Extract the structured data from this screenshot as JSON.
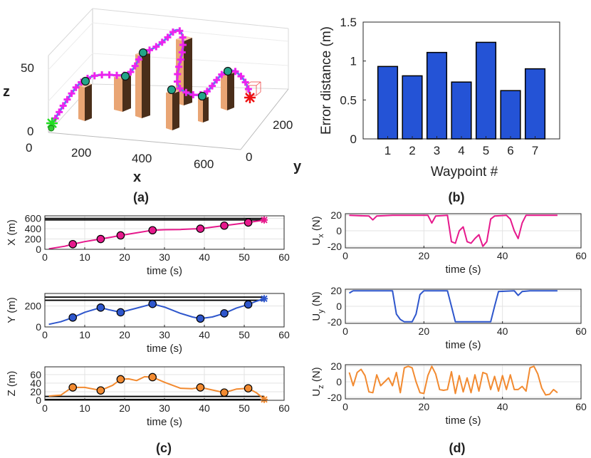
{
  "colors": {
    "bar_blue": "#2453d6",
    "x_series": "#e6198c",
    "y_series": "#2e56cc",
    "z_series": "#f28a30",
    "path3d": "#6e6ef0",
    "marker3d": "#ee22ee",
    "building_light": "#f4c9a6",
    "building_dark": "#3a2416",
    "start": "#22dd22",
    "goal": "#ee1111"
  },
  "chart_data": [
    {
      "id": "a",
      "type": "3d-line",
      "panel_label": "(a)",
      "xlabel": "x",
      "ylabel": "y",
      "zlabel": "z",
      "x_ticks": [
        "0",
        "200",
        "400",
        "600"
      ],
      "y_ticks": [
        "0",
        "200"
      ],
      "z_ticks": [
        "0",
        "50"
      ],
      "description_series": "trajectory with waypoints over building obstacles, from start (green) to goal (red)"
    },
    {
      "id": "b",
      "type": "bar",
      "panel_label": "(b)",
      "xlabel": "Waypoint #",
      "ylabel": "Error distance (m)",
      "categories": [
        "1",
        "2",
        "3",
        "4",
        "5",
        "6",
        "7"
      ],
      "values": [
        0.93,
        0.81,
        1.11,
        0.73,
        1.24,
        0.62,
        0.9
      ],
      "ylim": [
        0,
        1.5
      ],
      "y_ticks": [
        "0",
        "0.5",
        "1",
        "1.5"
      ]
    },
    {
      "id": "c",
      "type": "line",
      "panel_label": "(c)",
      "xlim": [
        0,
        60
      ],
      "x_ticks": [
        "0",
        "10",
        "20",
        "30",
        "40",
        "50",
        "60"
      ],
      "subplots": [
        {
          "name": "X",
          "ylabel": "X (m)",
          "xlabel": "time (s)",
          "ylim": [
            0,
            650
          ],
          "y_ticks": [
            "0",
            "200",
            "400",
            "600"
          ],
          "ref_lines": [
            570,
            600
          ],
          "series": [
            [
              1,
              10
            ],
            [
              5,
              60
            ],
            [
              7,
              100
            ],
            [
              10,
              150
            ],
            [
              14,
              200
            ],
            [
              17,
              240
            ],
            [
              19,
              270
            ],
            [
              23,
              320
            ],
            [
              27,
              370
            ],
            [
              30,
              380
            ],
            [
              34,
              385
            ],
            [
              37,
              395
            ],
            [
              39,
              400
            ],
            [
              42,
              430
            ],
            [
              45,
              460
            ],
            [
              48,
              490
            ],
            [
              51,
              520
            ],
            [
              53,
              545
            ],
            [
              55,
              565
            ]
          ],
          "waypoints": [
            [
              7,
              100
            ],
            [
              14,
              200
            ],
            [
              19,
              270
            ],
            [
              27,
              370
            ],
            [
              39,
              400
            ],
            [
              45,
              460
            ],
            [
              51,
              520
            ]
          ],
          "goal": [
            55,
            570
          ]
        },
        {
          "name": "Y",
          "ylabel": "Y (m)",
          "xlabel": "time (s)",
          "ylim": [
            0,
            320
          ],
          "y_ticks": [
            "0",
            "200"
          ],
          "ref_lines": [
            255,
            285
          ],
          "series": [
            [
              1,
              25
            ],
            [
              4,
              50
            ],
            [
              7,
              90
            ],
            [
              10,
              140
            ],
            [
              14,
              185
            ],
            [
              16,
              165
            ],
            [
              19,
              140
            ],
            [
              23,
              180
            ],
            [
              27,
              220
            ],
            [
              30,
              190
            ],
            [
              34,
              130
            ],
            [
              37,
              95
            ],
            [
              39,
              80
            ],
            [
              42,
              95
            ],
            [
              45,
              130
            ],
            [
              48,
              180
            ],
            [
              51,
              215
            ],
            [
              53,
              245
            ],
            [
              55,
              270
            ]
          ],
          "waypoints": [
            [
              7,
              90
            ],
            [
              14,
              185
            ],
            [
              19,
              140
            ],
            [
              27,
              220
            ],
            [
              39,
              80
            ],
            [
              45,
              130
            ],
            [
              51,
              215
            ]
          ],
          "goal": [
            55,
            270
          ]
        },
        {
          "name": "Z",
          "ylabel": "Z (m)",
          "xlabel": "time (s)",
          "ylim": [
            0,
            78
          ],
          "y_ticks": [
            "0",
            "20",
            "40",
            "60"
          ],
          "ref_lines": [
            2,
            9
          ],
          "series": [
            [
              1,
              10
            ],
            [
              4,
              12
            ],
            [
              6,
              25
            ],
            [
              7,
              30
            ],
            [
              10,
              30
            ],
            [
              14,
              23
            ],
            [
              17,
              35
            ],
            [
              19,
              49
            ],
            [
              21,
              50
            ],
            [
              23,
              46
            ],
            [
              25,
              55
            ],
            [
              27,
              54
            ],
            [
              30,
              42
            ],
            [
              34,
              28
            ],
            [
              37,
              27
            ],
            [
              39,
              30
            ],
            [
              42,
              24
            ],
            [
              45,
              18
            ],
            [
              48,
              26
            ],
            [
              51,
              28
            ],
            [
              53,
              18
            ],
            [
              55,
              3
            ]
          ],
          "waypoints": [
            [
              7,
              30
            ],
            [
              14,
              23
            ],
            [
              19,
              49
            ],
            [
              27,
              54
            ],
            [
              39,
              30
            ],
            [
              45,
              18
            ],
            [
              51,
              28
            ]
          ],
          "goal": [
            55,
            2
          ]
        }
      ]
    },
    {
      "id": "d",
      "type": "line",
      "panel_label": "(d)",
      "xlim": [
        0,
        60
      ],
      "x_ticks": [
        "0",
        "20",
        "40",
        "60"
      ],
      "subplots": [
        {
          "name": "Ux",
          "ylabel": "U_x (N)",
          "ylabel_main": "U",
          "ylabel_sub": "x",
          "ylabel_unit": " (N)",
          "xlabel": "time (s)",
          "ylim": [
            -22,
            22
          ],
          "y_ticks": [
            "-20",
            "0",
            "20"
          ],
          "series": [
            [
              1,
              20
            ],
            [
              6,
              19
            ],
            [
              7,
              14
            ],
            [
              8,
              19
            ],
            [
              12,
              20
            ],
            [
              21,
              20
            ],
            [
              22,
              10
            ],
            [
              23,
              19
            ],
            [
              26,
              20
            ],
            [
              27,
              -14
            ],
            [
              28,
              -16
            ],
            [
              29,
              0
            ],
            [
              30,
              5
            ],
            [
              31,
              -14
            ],
            [
              32,
              -16
            ],
            [
              33,
              -10
            ],
            [
              34,
              -5
            ],
            [
              35,
              -20
            ],
            [
              36,
              -14
            ],
            [
              37,
              15
            ],
            [
              38,
              19
            ],
            [
              41,
              20
            ],
            [
              42,
              15
            ],
            [
              43,
              0
            ],
            [
              44,
              -10
            ],
            [
              45,
              10
            ],
            [
              46,
              20
            ],
            [
              54,
              20
            ]
          ]
        },
        {
          "name": "Uy",
          "ylabel": "U_y (N)",
          "ylabel_main": "U",
          "ylabel_sub": "y",
          "ylabel_unit": " (N)",
          "xlabel": "time (s)",
          "ylim": [
            -22,
            22
          ],
          "y_ticks": [
            "-20",
            "0",
            "20"
          ],
          "series": [
            [
              1,
              17
            ],
            [
              2,
              20
            ],
            [
              12,
              20
            ],
            [
              13,
              -10
            ],
            [
              14,
              -17
            ],
            [
              15,
              -20
            ],
            [
              17,
              -20
            ],
            [
              18,
              -10
            ],
            [
              19,
              15
            ],
            [
              20,
              20
            ],
            [
              26,
              20
            ],
            [
              27,
              0
            ],
            [
              28,
              -20
            ],
            [
              37,
              -20
            ],
            [
              38,
              0
            ],
            [
              39,
              19
            ],
            [
              43,
              20
            ],
            [
              44,
              14
            ],
            [
              45,
              19
            ],
            [
              47,
              20
            ],
            [
              54,
              20
            ]
          ]
        },
        {
          "name": "Uz",
          "ylabel": "U_z (N)",
          "ylabel_main": "U",
          "ylabel_sub": "z",
          "ylabel_unit": " (N)",
          "xlabel": "time (s)",
          "ylim": [
            -22,
            22
          ],
          "y_ticks": [
            "-20",
            "0",
            "20"
          ],
          "series": [
            [
              1,
              12
            ],
            [
              2,
              -5
            ],
            [
              3,
              12
            ],
            [
              4,
              16
            ],
            [
              5,
              8
            ],
            [
              6,
              -13
            ],
            [
              7,
              -14
            ],
            [
              8,
              9
            ],
            [
              9,
              -5
            ],
            [
              10,
              0
            ],
            [
              11,
              5
            ],
            [
              12,
              -5
            ],
            [
              13,
              12
            ],
            [
              14,
              -14
            ],
            [
              15,
              18
            ],
            [
              16,
              20
            ],
            [
              17,
              18
            ],
            [
              18,
              0
            ],
            [
              19,
              -14
            ],
            [
              20,
              -15
            ],
            [
              21,
              8
            ],
            [
              22,
              20
            ],
            [
              23,
              10
            ],
            [
              24,
              -10
            ],
            [
              25,
              -11
            ],
            [
              26,
              -10
            ],
            [
              27,
              13
            ],
            [
              28,
              -15
            ],
            [
              29,
              8
            ],
            [
              30,
              -13
            ],
            [
              31,
              5
            ],
            [
              32,
              -14
            ],
            [
              33,
              9
            ],
            [
              34,
              -12
            ],
            [
              35,
              12
            ],
            [
              36,
              10
            ],
            [
              37,
              -10
            ],
            [
              38,
              7
            ],
            [
              39,
              -12
            ],
            [
              40,
              8
            ],
            [
              41,
              -10
            ],
            [
              42,
              9
            ],
            [
              43,
              -10
            ],
            [
              44,
              -10
            ],
            [
              45,
              -6
            ],
            [
              46,
              -12
            ],
            [
              47,
              18
            ],
            [
              48,
              20
            ],
            [
              49,
              10
            ],
            [
              50,
              -8
            ],
            [
              51,
              -17
            ],
            [
              52,
              -16
            ],
            [
              53,
              -10
            ],
            [
              54,
              -14
            ]
          ]
        }
      ]
    }
  ]
}
